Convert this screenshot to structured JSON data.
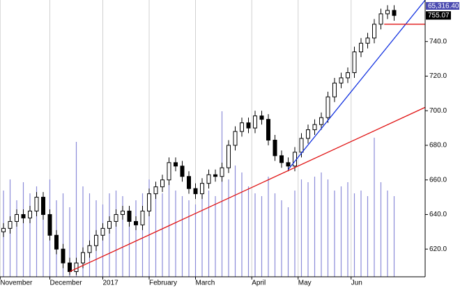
{
  "chart_data": {
    "type": "candlestick",
    "open": [
      630,
      632,
      636,
      640,
      638,
      642,
      650,
      640,
      628,
      620,
      612,
      607,
      612,
      618,
      622,
      628,
      632,
      636,
      640,
      642,
      636,
      634,
      642,
      652,
      656,
      660,
      670,
      668,
      662,
      655,
      652,
      658,
      663,
      662,
      667,
      680,
      688,
      693,
      690,
      697,
      695,
      683,
      674,
      670,
      668,
      676,
      684,
      689,
      692,
      696,
      708,
      716,
      719,
      722,
      734,
      739,
      742,
      750,
      756,
      758
    ],
    "high": [
      635,
      639,
      643,
      643,
      645,
      653,
      653,
      643,
      631,
      623,
      615,
      615,
      621,
      625,
      631,
      635,
      639,
      643,
      645,
      645,
      639,
      645,
      655,
      659,
      663,
      673,
      673,
      671,
      665,
      658,
      661,
      666,
      666,
      670,
      683,
      691,
      696,
      696,
      700,
      700,
      698,
      686,
      677,
      673,
      679,
      687,
      692,
      695,
      699,
      711,
      719,
      722,
      725,
      737,
      742,
      745,
      753,
      759,
      761,
      761
    ],
    "low": [
      627,
      629,
      633,
      635,
      635,
      639,
      637,
      625,
      617,
      609,
      605,
      605,
      609,
      615,
      619,
      625,
      629,
      633,
      637,
      633,
      631,
      631,
      639,
      649,
      653,
      657,
      665,
      659,
      652,
      649,
      649,
      655,
      659,
      659,
      664,
      677,
      685,
      687,
      687,
      692,
      680,
      671,
      667,
      665,
      665,
      673,
      681,
      686,
      689,
      693,
      705,
      713,
      716,
      719,
      731,
      736,
      739,
      747,
      753,
      752
    ],
    "close": [
      632,
      636,
      640,
      638,
      642,
      650,
      640,
      628,
      620,
      612,
      607,
      612,
      618,
      622,
      628,
      632,
      636,
      640,
      642,
      636,
      634,
      642,
      652,
      656,
      660,
      670,
      668,
      662,
      655,
      652,
      658,
      663,
      662,
      667,
      680,
      688,
      693,
      690,
      697,
      695,
      683,
      674,
      670,
      668,
      676,
      684,
      689,
      692,
      696,
      708,
      716,
      719,
      722,
      734,
      739,
      742,
      750,
      756,
      758,
      755.07
    ],
    "volume": [
      62,
      70,
      55,
      68,
      60,
      65,
      58,
      70,
      55,
      60,
      50,
      97,
      65,
      60,
      55,
      52,
      60,
      62,
      58,
      50,
      55,
      60,
      70,
      65,
      60,
      68,
      62,
      58,
      55,
      52,
      60,
      62,
      58,
      119,
      70,
      80,
      75,
      65,
      60,
      58,
      72,
      60,
      55,
      50,
      62,
      70,
      68,
      72,
      75,
      70,
      62,
      65,
      68,
      60,
      62,
      58,
      100,
      68,
      62,
      58
    ],
    "volume_label": "65,316.40",
    "ylim": [
      604,
      764
    ],
    "yticks": [
      {
        "value": 620,
        "label": "620.0"
      },
      {
        "value": 640,
        "label": "640.0"
      },
      {
        "value": 660,
        "label": "660.0"
      },
      {
        "value": 680,
        "label": "680.0"
      },
      {
        "value": 700,
        "label": "700.0"
      },
      {
        "value": 720,
        "label": "720.0"
      },
      {
        "value": 740,
        "label": "740.0"
      }
    ],
    "xticks": [
      {
        "value": -0.5,
        "label": "November"
      },
      {
        "value": 7,
        "label": "December"
      },
      {
        "value": 15,
        "label": "2017"
      },
      {
        "value": 22,
        "label": "February"
      },
      {
        "value": 29,
        "label": "March"
      },
      {
        "value": 37.5,
        "label": "April"
      },
      {
        "value": 44.5,
        "label": "May"
      },
      {
        "value": 52.5,
        "label": "Jun"
      }
    ],
    "trendlines": [
      {
        "color": "#e01010",
        "x": [
          10,
          63.7
        ],
        "y": [
          607,
          702
        ]
      },
      {
        "color": "#1030e0",
        "x": [
          43,
          63.7
        ],
        "y": [
          666,
          764
        ]
      },
      {
        "color": "#e01010",
        "x": [
          57.5,
          63.7
        ],
        "y": [
          750,
          750
        ]
      }
    ],
    "volume_color": "#8a8ad8"
  }
}
